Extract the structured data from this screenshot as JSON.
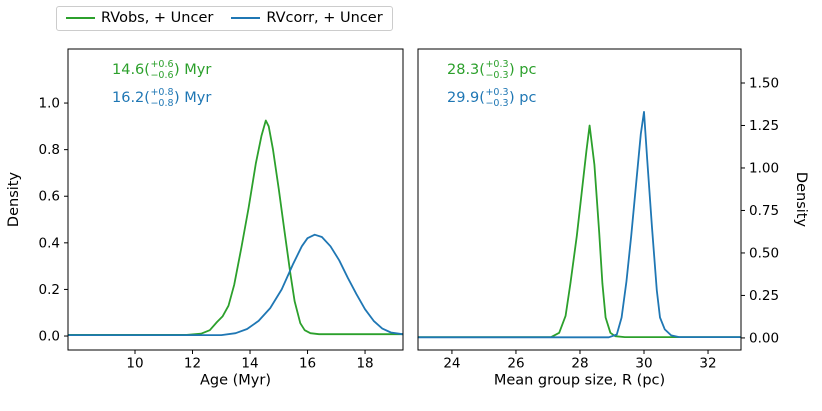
{
  "figure": {
    "background": "#ffffff"
  },
  "legend": {
    "items": [
      {
        "label": "RVobs, + Uncer",
        "color": "#2ca02c"
      },
      {
        "label": "RVcorr, + Uncer",
        "color": "#1f77b4"
      }
    ]
  },
  "chart_data": [
    {
      "type": "line",
      "title": "",
      "xlabel": "Age (Myr)",
      "ylabel": "Density",
      "ylabel_side": "left",
      "grid": false,
      "xlim": [
        7.67,
        19.32
      ],
      "ylim": [
        -0.06,
        1.232
      ],
      "xticks": [
        10,
        12,
        14,
        16,
        18
      ],
      "xtick_labels": [
        "10",
        "12",
        "14",
        "16",
        "18"
      ],
      "yticks": [
        0.0,
        0.2,
        0.4,
        0.6,
        0.8,
        1.0
      ],
      "ytick_labels": [
        "0.0",
        "0.2",
        "0.4",
        "0.6",
        "0.8",
        "1.0"
      ],
      "annotations": [
        {
          "value": "14.6",
          "open": "(",
          "plus": "+0.6",
          "minus": "−0.6",
          "close": ")",
          "unit": " Myr",
          "color": "#2ca02c"
        },
        {
          "value": "16.2",
          "open": "(",
          "plus": "+0.8",
          "minus": "−0.8",
          "close": ")",
          "unit": " Myr",
          "color": "#1f77b4"
        }
      ],
      "series": [
        {
          "name": "RVobs, + Uncer",
          "color": "#2ca02c",
          "x": [
            7.7,
            11.8,
            12.3,
            12.6,
            12.85,
            13.05,
            13.25,
            13.45,
            13.7,
            13.95,
            14.2,
            14.4,
            14.55,
            14.65,
            14.8,
            15.0,
            15.2,
            15.4,
            15.55,
            15.75,
            15.9,
            16.1,
            16.4,
            19.3
          ],
          "y": [
            0.005,
            0.005,
            0.01,
            0.025,
            0.06,
            0.085,
            0.13,
            0.22,
            0.38,
            0.55,
            0.74,
            0.86,
            0.925,
            0.9,
            0.8,
            0.63,
            0.45,
            0.27,
            0.15,
            0.055,
            0.025,
            0.012,
            0.008,
            0.008
          ]
        },
        {
          "name": "RVcorr, + Uncer",
          "color": "#1f77b4",
          "x": [
            7.7,
            13.0,
            13.5,
            13.9,
            14.3,
            14.7,
            15.1,
            15.5,
            15.8,
            16.0,
            16.25,
            16.5,
            16.8,
            17.1,
            17.4,
            17.7,
            18.0,
            18.3,
            18.6,
            18.9,
            19.3
          ],
          "y": [
            0.004,
            0.004,
            0.012,
            0.03,
            0.065,
            0.12,
            0.2,
            0.31,
            0.385,
            0.42,
            0.435,
            0.425,
            0.385,
            0.325,
            0.25,
            0.18,
            0.115,
            0.065,
            0.032,
            0.015,
            0.008
          ]
        }
      ]
    },
    {
      "type": "line",
      "title": "",
      "xlabel": "Mean group size, R (pc)",
      "ylabel": "Density",
      "ylabel_side": "right",
      "grid": false,
      "xlim": [
        22.94,
        33.03
      ],
      "ylim": [
        -0.071,
        1.7
      ],
      "xticks": [
        24,
        26,
        28,
        30,
        32
      ],
      "xtick_labels": [
        "24",
        "26",
        "28",
        "30",
        "32"
      ],
      "yticks": [
        0.0,
        0.25,
        0.5,
        0.75,
        1.0,
        1.25,
        1.5
      ],
      "ytick_labels": [
        "0.00",
        "0.25",
        "0.50",
        "0.75",
        "1.00",
        "1.25",
        "1.50"
      ],
      "annotations": [
        {
          "value": "28.3",
          "open": "(",
          "plus": "+0.3",
          "minus": "−0.3",
          "close": ")",
          "unit": " pc",
          "color": "#2ca02c"
        },
        {
          "value": "29.9",
          "open": "(",
          "plus": "+0.3",
          "minus": "−0.3",
          "close": ")",
          "unit": " pc",
          "color": "#1f77b4"
        }
      ],
      "series": [
        {
          "name": "RVobs, + Uncer",
          "color": "#2ca02c",
          "x": [
            22.95,
            27.1,
            27.35,
            27.55,
            27.7,
            27.9,
            28.05,
            28.2,
            28.3,
            28.45,
            28.6,
            28.7,
            28.8,
            28.95,
            29.1,
            29.4,
            33.0
          ],
          "y": [
            0.005,
            0.005,
            0.03,
            0.13,
            0.32,
            0.6,
            0.85,
            1.1,
            1.25,
            1.02,
            0.62,
            0.32,
            0.12,
            0.03,
            0.01,
            0.005,
            0.005
          ]
        },
        {
          "name": "RVcorr, + Uncer",
          "color": "#1f77b4",
          "x": [
            22.95,
            28.9,
            29.15,
            29.3,
            29.45,
            29.6,
            29.75,
            29.9,
            30.0,
            30.1,
            30.25,
            30.4,
            30.5,
            30.65,
            30.85,
            31.1,
            33.0
          ],
          "y": [
            0.004,
            0.004,
            0.02,
            0.12,
            0.33,
            0.6,
            0.9,
            1.2,
            1.33,
            1.05,
            0.65,
            0.28,
            0.12,
            0.05,
            0.015,
            0.005,
            0.005
          ]
        }
      ]
    }
  ]
}
